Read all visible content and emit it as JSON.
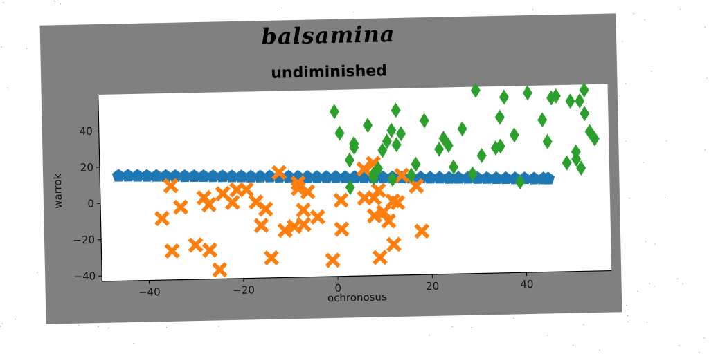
{
  "figure": {
    "title": "balsamina",
    "subtitle": "undiminished"
  },
  "chart_data": {
    "type": "scatter",
    "title": "undiminished",
    "xlabel": "ochronosus",
    "ylabel": "warrok",
    "xlim": [
      -50,
      58
    ],
    "ylim": [
      -43,
      60
    ],
    "xticks": [
      -40,
      -20,
      0,
      20,
      40
    ],
    "yticks": [
      -40,
      -20,
      0,
      20,
      40
    ],
    "x_tick_labels": [
      "−40",
      "−20",
      "0",
      "20",
      "40"
    ],
    "y_tick_labels": [
      "−40",
      "−20",
      "0",
      "20",
      "40"
    ],
    "grid": false,
    "series": [
      {
        "marker": "pentagon",
        "color": "#1f77b4",
        "points": [
          [
            -46,
            15
          ],
          [
            -44,
            14.9
          ],
          [
            -42,
            14.8
          ],
          [
            -40,
            14.6
          ],
          [
            -38,
            14.5
          ],
          [
            -36,
            14.3
          ],
          [
            -34,
            14.2
          ],
          [
            -32,
            14
          ],
          [
            -30,
            13.9
          ],
          [
            -28,
            13.8
          ],
          [
            -26,
            13.6
          ],
          [
            -24,
            13.5
          ],
          [
            -22,
            13.3
          ],
          [
            -20,
            13.2
          ],
          [
            -18,
            13
          ],
          [
            -16,
            12.9
          ],
          [
            -14,
            12.8
          ],
          [
            -12,
            12.6
          ],
          [
            -10,
            12.5
          ],
          [
            -8,
            12.3
          ],
          [
            -6,
            12.2
          ],
          [
            -4,
            12
          ],
          [
            -2,
            11.9
          ],
          [
            0,
            11.8
          ],
          [
            2,
            11.6
          ],
          [
            4,
            11.5
          ],
          [
            6,
            11.3
          ],
          [
            8,
            11.2
          ],
          [
            10,
            11
          ],
          [
            12,
            10.9
          ],
          [
            14,
            10.8
          ],
          [
            16,
            10.6
          ],
          [
            18,
            10.5
          ],
          [
            20,
            10.3
          ],
          [
            22,
            10.2
          ],
          [
            24,
            10
          ],
          [
            26,
            9.9
          ],
          [
            28,
            9.8
          ],
          [
            30,
            9.6
          ],
          [
            32,
            9.5
          ],
          [
            34,
            9.3
          ],
          [
            36,
            9.2
          ],
          [
            38,
            9
          ],
          [
            40,
            8.9
          ],
          [
            42,
            8.7
          ],
          [
            44,
            8.6
          ],
          [
            45,
            8.5
          ]
        ]
      },
      {
        "marker": "X",
        "color": "#ff7f0e",
        "points": [
          [
            -35,
            9
          ],
          [
            -33,
            -3
          ],
          [
            -37,
            -9
          ],
          [
            -35,
            -27
          ],
          [
            -30,
            -24
          ],
          [
            -27,
            -27
          ],
          [
            -25,
            -38
          ],
          [
            -28,
            2
          ],
          [
            -27,
            -2
          ],
          [
            -24,
            4
          ],
          [
            -22,
            -1
          ],
          [
            -21,
            6
          ],
          [
            -19,
            6
          ],
          [
            -17,
            -1
          ],
          [
            -15,
            -5
          ],
          [
            -16,
            -14
          ],
          [
            -14,
            -32
          ],
          [
            -12,
            15
          ],
          [
            -11,
            -17
          ],
          [
            -9,
            -15
          ],
          [
            -8,
            6
          ],
          [
            -8,
            9
          ],
          [
            -7,
            -6
          ],
          [
            -7,
            -14
          ],
          [
            -6,
            4
          ],
          [
            -4,
            -10
          ],
          [
            -1,
            -34
          ],
          [
            1,
            -1
          ],
          [
            1,
            -17
          ],
          [
            6,
            0
          ],
          [
            6,
            16
          ],
          [
            8,
            19
          ],
          [
            8,
            0
          ],
          [
            8,
            -10
          ],
          [
            9,
            4
          ],
          [
            9,
            -33
          ],
          [
            11,
            -13
          ],
          [
            12,
            -2
          ],
          [
            12,
            -26
          ],
          [
            13,
            -3
          ],
          [
            14,
            12
          ],
          [
            17,
            6
          ],
          [
            18,
            -19
          ],
          [
            10,
            -8
          ]
        ]
      },
      {
        "marker": "diamond",
        "color": "#2ca02c",
        "points": [
          [
            0,
            48
          ],
          [
            1,
            36
          ],
          [
            3,
            21
          ],
          [
            4,
            30
          ],
          [
            4,
            28
          ],
          [
            3,
            6
          ],
          [
            7,
            40
          ],
          [
            8,
            13
          ],
          [
            8,
            11
          ],
          [
            9,
            16
          ],
          [
            10,
            26
          ],
          [
            11,
            31
          ],
          [
            12,
            37
          ],
          [
            12,
            10
          ],
          [
            13,
            29
          ],
          [
            13,
            48
          ],
          [
            14,
            35
          ],
          [
            16,
            12
          ],
          [
            17,
            18
          ],
          [
            19,
            42
          ],
          [
            22,
            26
          ],
          [
            23,
            32
          ],
          [
            24,
            28
          ],
          [
            25,
            16
          ],
          [
            27,
            37
          ],
          [
            29,
            12
          ],
          [
            30,
            58
          ],
          [
            31,
            22
          ],
          [
            34,
            26
          ],
          [
            35,
            43
          ],
          [
            35,
            27
          ],
          [
            36,
            54
          ],
          [
            38,
            33
          ],
          [
            39,
            7
          ],
          [
            41,
            56
          ],
          [
            44,
            41
          ],
          [
            45,
            29
          ],
          [
            46,
            53
          ],
          [
            47,
            54
          ],
          [
            49,
            17
          ],
          [
            50,
            51
          ],
          [
            51,
            23
          ],
          [
            51,
            19
          ],
          [
            52,
            51
          ],
          [
            52,
            14
          ],
          [
            53,
            44
          ],
          [
            53,
            57
          ],
          [
            54,
            34
          ],
          [
            55,
            30
          ]
        ]
      }
    ]
  }
}
